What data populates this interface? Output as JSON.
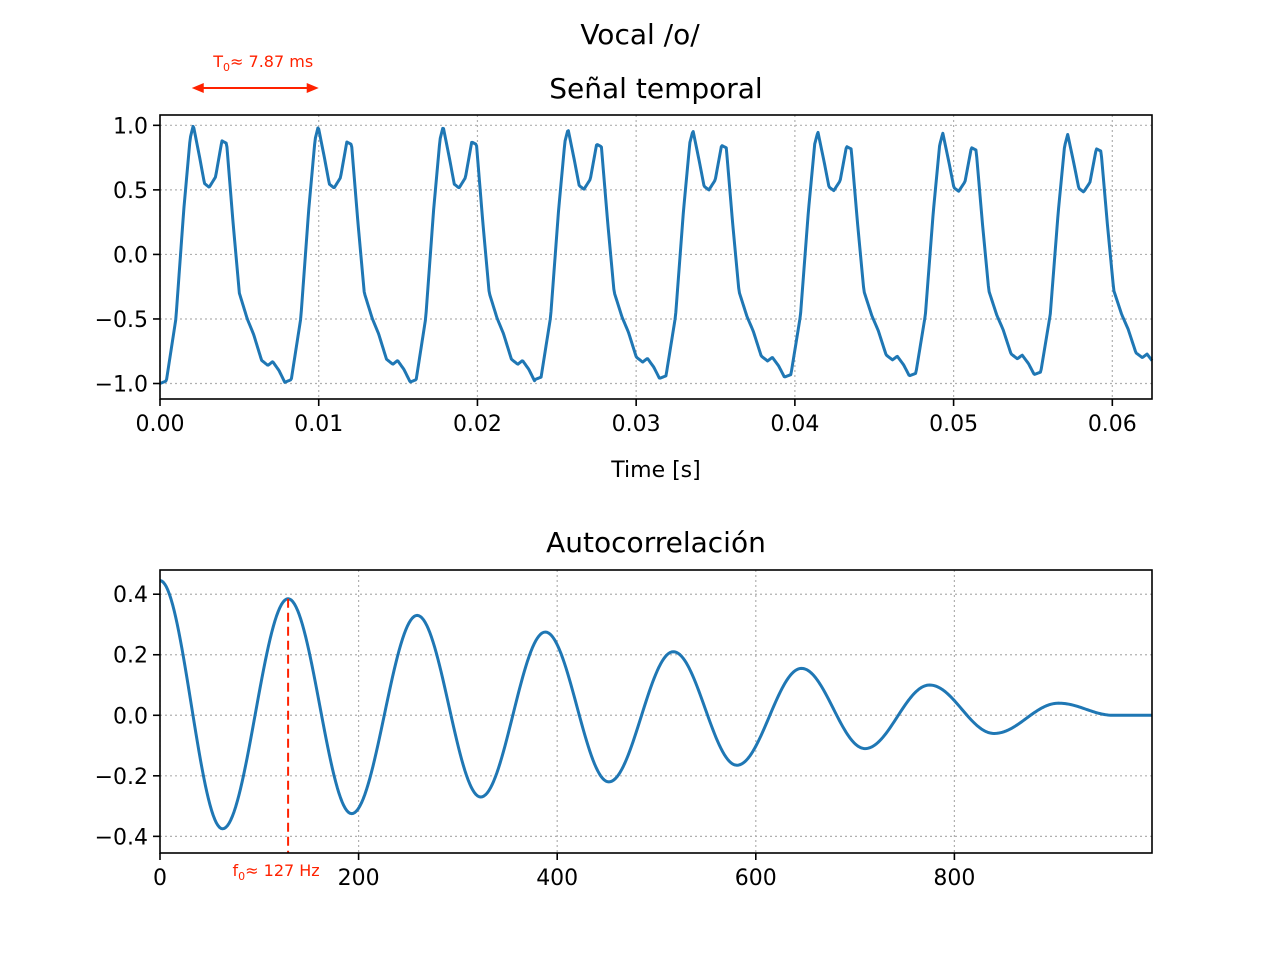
{
  "figure": {
    "suptitle": "Vocal /o/"
  },
  "chart_data": [
    {
      "type": "line",
      "title": "Señal temporal",
      "xlabel": "Time [s]",
      "ylabel": "",
      "xlim": [
        0,
        0.0625
      ],
      "ylim": [
        -1.12,
        1.08
      ],
      "xticks": [
        0,
        0.01,
        0.02,
        0.03,
        0.04,
        0.05,
        0.06
      ],
      "xtick_labels": [
        "0.00",
        "0.01",
        "0.02",
        "0.03",
        "0.04",
        "0.05",
        "0.06"
      ],
      "yticks": [
        1.0,
        0.5,
        0.0,
        -0.5,
        -1.0
      ],
      "ytick_labels": [
        "1.0",
        "0.5",
        "0.0",
        "−0.5",
        "−1.0"
      ],
      "grid": true,
      "line_color": "#1f77b4",
      "series": [
        {
          "period_s": 0.00787,
          "x": [
            0.0,
            0.0004,
            0.001,
            0.0015,
            0.0019,
            0.0021,
            0.0025,
            0.0028,
            0.0031,
            0.0035,
            0.0039,
            0.0042,
            0.0046,
            0.005,
            0.0055,
            0.0059,
            0.0064,
            0.0068,
            0.0071,
            0.0075,
            0.0079
          ],
          "y": [
            -1.0,
            -0.98,
            -0.5,
            0.35,
            0.9,
            1.0,
            0.75,
            0.55,
            0.52,
            0.6,
            0.88,
            0.86,
            0.25,
            -0.3,
            -0.5,
            -0.62,
            -0.82,
            -0.86,
            -0.83,
            -0.9,
            -1.0
          ],
          "amplitude_scale": [
            1.0,
            0.99,
            0.99,
            0.97,
            0.96,
            0.95,
            0.94,
            0.93
          ]
        }
      ],
      "annotation": {
        "label": "T",
        "label_sub": "0",
        "label_rest": "≈ 7.87 ms",
        "x_start": 0.002,
        "x_end": 0.01,
        "color": "#ff2200"
      }
    },
    {
      "type": "line",
      "title": "Autocorrelación",
      "xlabel": "",
      "ylabel": "",
      "xlim": [
        0,
        999
      ],
      "ylim": [
        -0.455,
        0.48
      ],
      "xticks": [
        0,
        200,
        400,
        600,
        800
      ],
      "xtick_labels": [
        "0",
        "200",
        "400",
        "600",
        "800"
      ],
      "yticks": [
        0.4,
        0.2,
        0.0,
        -0.2,
        -0.4
      ],
      "ytick_labels": [
        "0.4",
        "0.2",
        "0.0",
        "−0.2",
        "−0.4"
      ],
      "grid": true,
      "line_color": "#1f77b4",
      "series": [
        {
          "x": [
            0,
            63,
            129,
            193,
            259,
            323,
            388,
            452,
            517,
            581,
            646,
            710,
            775,
            840,
            905,
            960,
            999
          ],
          "y": [
            0.445,
            -0.375,
            0.385,
            -0.325,
            0.33,
            -0.27,
            0.275,
            -0.22,
            0.21,
            -0.165,
            0.155,
            -0.11,
            0.1,
            -0.06,
            0.04,
            0.0,
            0.0
          ]
        }
      ],
      "annotation": {
        "label": "f",
        "label_sub": "0",
        "label_rest": "≈ 127 Hz",
        "x": 129,
        "y": 0.385,
        "color": "#ff2200"
      }
    }
  ]
}
